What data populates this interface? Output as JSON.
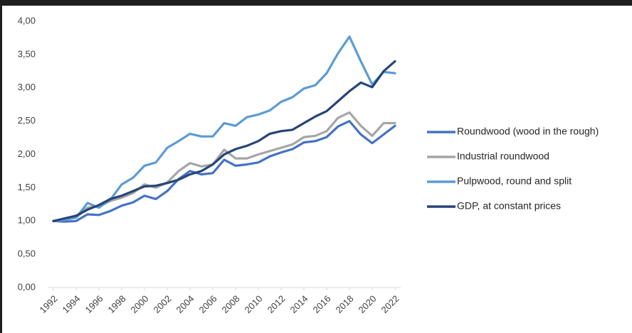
{
  "chart_data": {
    "type": "line",
    "x": [
      1992,
      1993,
      1994,
      1995,
      1996,
      1997,
      1998,
      1999,
      2000,
      2001,
      2002,
      2003,
      2004,
      2005,
      2006,
      2007,
      2008,
      2009,
      2010,
      2011,
      2012,
      2013,
      2014,
      2015,
      2016,
      2017,
      2018,
      2019,
      2020,
      2021,
      2022
    ],
    "xlim": [
      1992,
      2022
    ],
    "xticks": [
      1992,
      1994,
      1996,
      1998,
      2000,
      2002,
      2004,
      2006,
      2008,
      2010,
      2012,
      2014,
      2016,
      2018,
      2020,
      2022
    ],
    "ylim": [
      0,
      4
    ],
    "yticks": [
      {
        "value": 0,
        "label": "0,00"
      },
      {
        "value": 0.5,
        "label": "0,50"
      },
      {
        "value": 1,
        "label": "1,00"
      },
      {
        "value": 1.5,
        "label": "1,50"
      },
      {
        "value": 2,
        "label": "2,00"
      },
      {
        "value": 2.5,
        "label": "2,50"
      },
      {
        "value": 3,
        "label": "3,00"
      },
      {
        "value": 3.5,
        "label": "3,50"
      },
      {
        "value": 4,
        "label": "4,00"
      }
    ],
    "grid": false,
    "legend": "right",
    "series": [
      {
        "name": "Roundwood (wood in the rough)",
        "color": "#4472c4",
        "values": [
          1.0,
          0.99,
          1.0,
          1.1,
          1.09,
          1.15,
          1.23,
          1.28,
          1.38,
          1.33,
          1.45,
          1.63,
          1.75,
          1.7,
          1.72,
          1.92,
          1.83,
          1.85,
          1.88,
          1.97,
          2.03,
          2.08,
          2.18,
          2.2,
          2.26,
          2.42,
          2.5,
          2.3,
          2.17,
          2.3,
          2.43
        ]
      },
      {
        "name": "Industrial roundwood",
        "color": "#a5a5a5",
        "values": [
          1.0,
          1.02,
          1.05,
          1.2,
          1.22,
          1.3,
          1.35,
          1.42,
          1.55,
          1.5,
          1.58,
          1.75,
          1.87,
          1.82,
          1.85,
          2.07,
          1.94,
          1.94,
          2.0,
          2.05,
          2.1,
          2.15,
          2.26,
          2.28,
          2.35,
          2.55,
          2.63,
          2.43,
          2.28,
          2.47,
          2.47
        ]
      },
      {
        "name": "Pulpwood, round and split",
        "color": "#5b9bd5",
        "values": [
          1.0,
          1.02,
          1.05,
          1.27,
          1.2,
          1.32,
          1.55,
          1.65,
          1.83,
          1.88,
          2.1,
          2.2,
          2.31,
          2.27,
          2.27,
          2.47,
          2.43,
          2.56,
          2.6,
          2.66,
          2.79,
          2.86,
          2.99,
          3.04,
          3.22,
          3.52,
          3.77,
          3.4,
          3.05,
          3.24,
          3.22
        ]
      },
      {
        "name": "GDP, at constant prices",
        "color": "#264478",
        "values": [
          1.0,
          1.04,
          1.08,
          1.17,
          1.24,
          1.33,
          1.38,
          1.45,
          1.52,
          1.53,
          1.57,
          1.62,
          1.7,
          1.75,
          1.85,
          2.0,
          2.08,
          2.13,
          2.2,
          2.31,
          2.35,
          2.37,
          2.47,
          2.57,
          2.65,
          2.8,
          2.95,
          3.08,
          3.01,
          3.25,
          3.4
        ]
      }
    ]
  }
}
